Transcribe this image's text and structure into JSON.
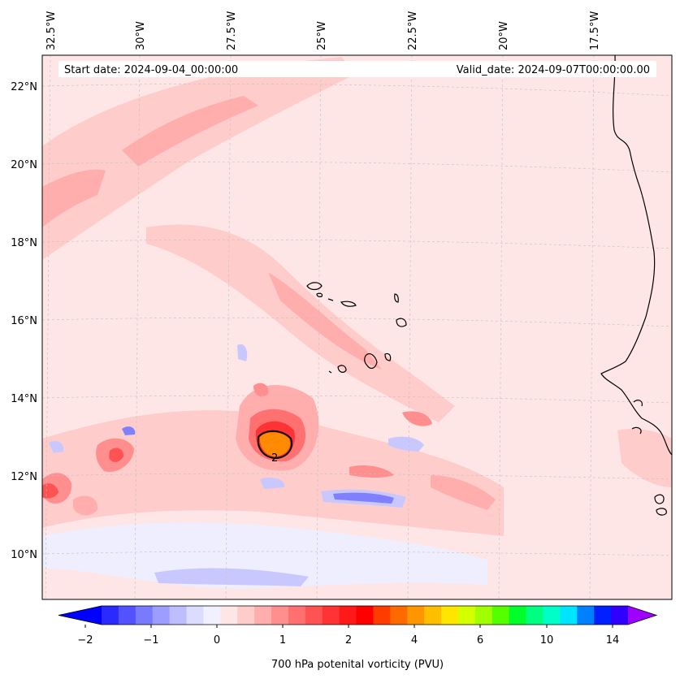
{
  "header": {
    "start_date": "Start date: 2024-09-04_00:00:00",
    "valid_date": "Valid_date: 2024-09-07T00:00:00.00"
  },
  "longitude_labels": [
    "32.5°W",
    "30°W",
    "27.5°W",
    "25°W",
    "22.5°W",
    "20°W",
    "17.5°W"
  ],
  "latitude_labels": [
    "22°N",
    "20°N",
    "18°N",
    "16°N",
    "14°N",
    "12°N",
    "10°N"
  ],
  "colorbar": {
    "label": "700 hPa potenital vorticity (PVU)",
    "tick_labels": [
      "−2",
      "−1",
      "0",
      "1",
      "2",
      "4",
      "6",
      "10",
      "14"
    ],
    "colors": [
      "#0000ff",
      "#2a2aff",
      "#5252ff",
      "#7a7aff",
      "#9d9dff",
      "#bdbdff",
      "#dcdcff",
      "#f0f0ff",
      "#ffe6e6",
      "#ffcccc",
      "#ffadad",
      "#ff8f8f",
      "#ff7070",
      "#ff5252",
      "#ff3333",
      "#ff1a1a",
      "#ff0000",
      "#ff3c00",
      "#ff6a00",
      "#ff9500",
      "#ffbf00",
      "#ffe600",
      "#d4ff00",
      "#a0ff00",
      "#55ff00",
      "#00ff2a",
      "#00ff80",
      "#00ffc8",
      "#00e5ff",
      "#0080ff",
      "#0020ff",
      "#3000ff",
      "#a000ff"
    ]
  },
  "map": {
    "background_color": "#ffe6e6",
    "contour_label": "2",
    "colors": {
      "pv_low": "#eeeeff",
      "pv_neg": "#c8c8ff",
      "pv_neg_strong": "#8080ff",
      "pv_pos": "#ffcccc",
      "pv_pos_mid": "#ffadad",
      "pv_pos_strong": "#ff7070",
      "pv_max": "#ff8c00",
      "coast": "#000000"
    }
  }
}
